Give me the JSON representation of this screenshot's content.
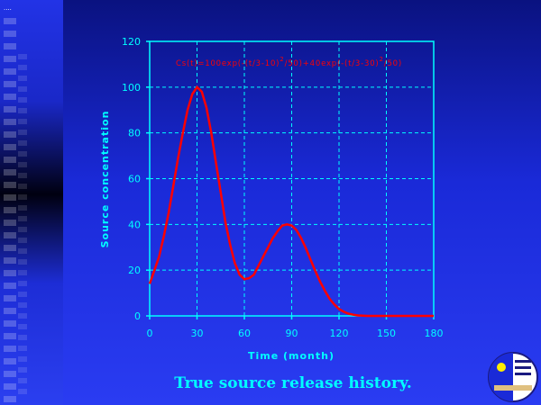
{
  "slide": {
    "caption": "True source release history.",
    "corner_marks": "....",
    "logo_icon": "university-seal-icon"
  },
  "colors": {
    "axis": "#00ffff",
    "grid": "#00ffff",
    "curve": "#ff0000",
    "formula": "#ff0000"
  },
  "chart_data": {
    "type": "line",
    "title": "",
    "xlabel": "Time (month)",
    "ylabel": "Source concentration",
    "xlim": [
      0,
      180
    ],
    "ylim": [
      0,
      120
    ],
    "x_ticks": [
      0,
      30,
      60,
      90,
      120,
      150,
      180
    ],
    "y_ticks": [
      0,
      20,
      40,
      60,
      80,
      100,
      120
    ],
    "grid": true,
    "legend": "none",
    "annotation": {
      "prefix": "Cs(t)=100exp",
      "part1": "(-(t/3-10)",
      "exp1": "2",
      "part2": "/50)+40exp",
      "part3": "(-(t/3-30)",
      "exp2": "2",
      "part4": "/50)"
    },
    "series": [
      {
        "x": [
          0,
          3,
          6,
          9,
          12,
          15,
          18,
          21,
          24,
          27,
          30,
          33,
          36,
          39,
          42,
          45,
          48,
          51,
          54,
          57,
          60,
          63,
          66,
          69,
          72,
          75,
          78,
          81,
          84,
          87,
          90,
          93,
          96,
          99,
          102,
          105,
          108,
          111,
          114,
          117,
          120,
          123,
          126,
          129,
          132,
          135,
          138,
          141,
          144,
          150,
          160,
          170,
          180
        ],
        "y": [
          14,
          20,
          26,
          35,
          45,
          57,
          69,
          80,
          90,
          97,
          100,
          98,
          91,
          80,
          67,
          54,
          41,
          31,
          23,
          18,
          16,
          16.5,
          18,
          22,
          26,
          30,
          34,
          37,
          39.5,
          40,
          39.5,
          37.5,
          34,
          29.5,
          24.5,
          19.5,
          15,
          11,
          7.5,
          5,
          3,
          1.8,
          1,
          0.5,
          0.2,
          0.1,
          0,
          0,
          0,
          0,
          0,
          0,
          0
        ]
      }
    ]
  }
}
